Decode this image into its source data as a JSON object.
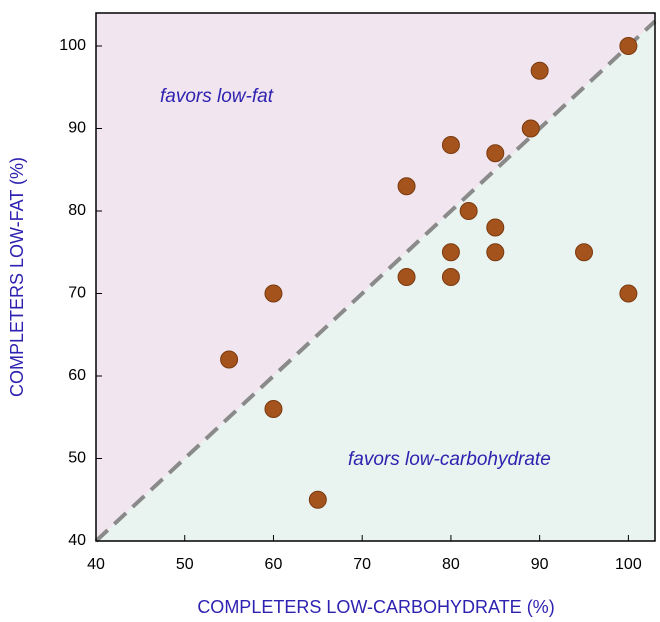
{
  "chart_data": {
    "type": "scatter",
    "x_label": "COMPLETERS LOW-CARBOHYDRATE (%)",
    "y_label": "COMPLETERS LOW-FAT (%)",
    "annotations": [
      "favors low-fat",
      "favors low-carbohydrate"
    ],
    "series": [
      {
        "name": "completers",
        "color": "#a5531c",
        "x": [
          55,
          60,
          60,
          65,
          75,
          75,
          80,
          80,
          80,
          82,
          85,
          85,
          85,
          89,
          90,
          95,
          100,
          100
        ],
        "values": [
          62,
          70,
          56,
          45,
          83,
          72,
          88,
          75,
          72,
          80,
          87,
          78,
          75,
          90,
          97,
          75,
          100,
          70
        ]
      }
    ],
    "xlim": [
      40,
      103
    ],
    "ylim": [
      40,
      104
    ],
    "xticks": [
      40,
      50,
      60,
      70,
      80,
      90,
      100
    ],
    "yticks": [
      40,
      50,
      60,
      70,
      80,
      90,
      100
    ],
    "diagonal": true
  }
}
